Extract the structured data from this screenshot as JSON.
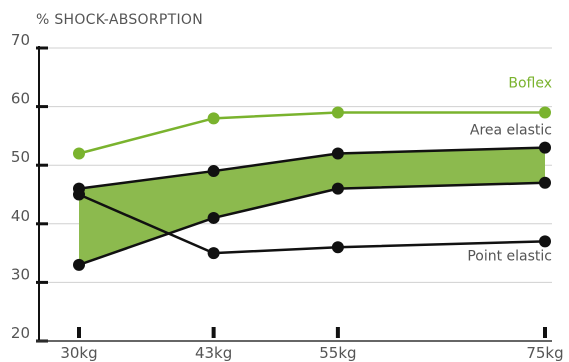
{
  "chart_data": {
    "type": "line",
    "title": "",
    "ylabel": "% SHOCK-ABSORPTION",
    "xlabel": "",
    "categories": [
      "30kg",
      "43kg",
      "55kg",
      "75kg"
    ],
    "x_values": [
      30,
      43,
      55,
      75
    ],
    "xlim": [
      30,
      75
    ],
    "ylim": [
      20,
      70
    ],
    "yticks": [
      20,
      30,
      40,
      50,
      60,
      70
    ],
    "grid": "horizontal",
    "series": [
      {
        "name": "Boflex",
        "color": "#7ab32e",
        "values": [
          52,
          58,
          59,
          59
        ]
      },
      {
        "name": "Area elastic",
        "color": "#111111",
        "values": [
          46,
          49,
          52,
          53
        ]
      },
      {
        "name": "",
        "color": "#111111",
        "values": [
          33,
          41,
          46,
          47
        ]
      },
      {
        "name": "Point elastic",
        "color": "#111111",
        "values": [
          45,
          35,
          36,
          37
        ]
      }
    ],
    "band": {
      "between": [
        1,
        2
      ],
      "color": "#8cba4e"
    }
  }
}
